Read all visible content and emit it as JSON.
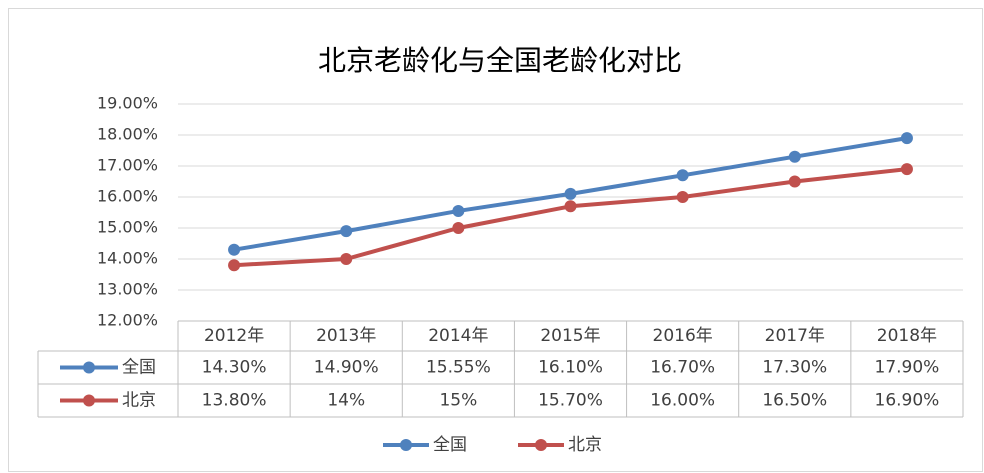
{
  "chart_data": {
    "type": "line",
    "title": "北京老龄化与全国老龄化对比",
    "categories": [
      "2012年",
      "2013年",
      "2014年",
      "2015年",
      "2016年",
      "2017年",
      "2018年"
    ],
    "series": [
      {
        "name": "全国",
        "color": "#4f81bd",
        "values": [
          14.3,
          14.9,
          15.55,
          16.1,
          16.7,
          17.3,
          17.9
        ],
        "value_labels": [
          "14.30%",
          "14.90%",
          "15.55%",
          "16.10%",
          "16.70%",
          "17.30%",
          "17.90%"
        ]
      },
      {
        "name": "北京",
        "color": "#c0504d",
        "values": [
          13.8,
          14,
          15,
          15.7,
          16.0,
          16.5,
          16.9
        ],
        "value_labels": [
          "13.80%",
          "14%",
          "15%",
          "15.70%",
          "16.00%",
          "16.50%",
          "16.90%"
        ]
      }
    ],
    "ylim": [
      12,
      19
    ],
    "yticks": [
      {
        "value": 12,
        "label": "12.00%"
      },
      {
        "value": 13,
        "label": "13.00%"
      },
      {
        "value": 14,
        "label": "14.00%"
      },
      {
        "value": 15,
        "label": "15.00%"
      },
      {
        "value": 16,
        "label": "16.00%"
      },
      {
        "value": 17,
        "label": "17.00%"
      },
      {
        "value": 18,
        "label": "18.00%"
      },
      {
        "value": 19,
        "label": "19.00%"
      }
    ],
    "grid": true
  }
}
